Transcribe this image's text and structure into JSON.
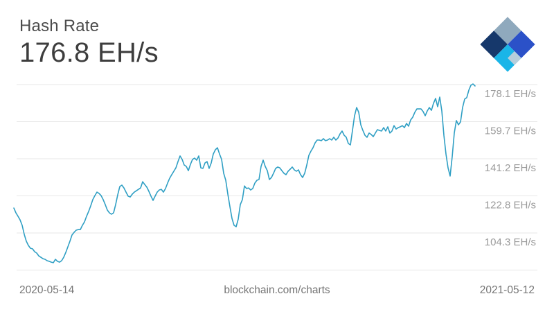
{
  "header": {
    "title": "Hash Rate",
    "value": "176.8 EH/s"
  },
  "footer": {
    "start_date": "2020-05-14",
    "watermark": "blockchain.com/charts",
    "end_date": "2021-05-12"
  },
  "logo": {
    "name": "blockchain-com-logo",
    "colors": {
      "top": "#8FA9BD",
      "right": "#2B51C8",
      "left": "#16386B",
      "bottom": "#19B5E8",
      "accent_small": "#B7CEDB"
    }
  },
  "chart_data": {
    "type": "line",
    "title": "Hash Rate",
    "unit": "EH/s",
    "x_range": [
      "2020-05-14",
      "2021-05-12"
    ],
    "y_axis_side": "right",
    "grid": true,
    "line_color": "#2f9fc4",
    "grid_color": "#e7e7e7",
    "y_ticks": [
      {
        "value": 178.1,
        "label": "178.1 EH/s"
      },
      {
        "value": 159.7,
        "label": "159.7 EH/s"
      },
      {
        "value": 141.2,
        "label": "141.2 EH/s"
      },
      {
        "value": 122.8,
        "label": "122.8 EH/s"
      },
      {
        "value": 104.3,
        "label": "104.3 EH/s"
      },
      {
        "value": 85.9,
        "label": ""
      }
    ],
    "values": [
      116.7,
      114.3,
      112.6,
      110.8,
      108.1,
      103.6,
      100.2,
      98.1,
      96.7,
      96.4,
      95.0,
      94.3,
      92.9,
      92.2,
      91.5,
      91.2,
      90.5,
      90.2,
      89.8,
      89.5,
      91.2,
      90.2,
      89.8,
      90.5,
      92.2,
      94.6,
      97.4,
      100.2,
      103.3,
      104.6,
      105.7,
      106.0,
      106.0,
      108.1,
      109.8,
      112.6,
      115.0,
      117.8,
      120.9,
      122.9,
      124.6,
      124.0,
      122.9,
      120.9,
      118.4,
      115.7,
      114.3,
      113.6,
      114.3,
      118.4,
      123.3,
      127.4,
      128.1,
      126.7,
      124.6,
      122.6,
      122.2,
      123.6,
      124.6,
      125.3,
      126.0,
      126.7,
      129.8,
      128.4,
      127.1,
      125.0,
      122.6,
      120.5,
      122.6,
      124.6,
      125.7,
      126.0,
      124.6,
      126.4,
      129.1,
      131.5,
      133.3,
      135.0,
      136.7,
      139.8,
      142.6,
      140.9,
      138.1,
      137.4,
      135.3,
      138.4,
      140.9,
      141.5,
      140.5,
      142.6,
      136.7,
      136.4,
      139.1,
      139.8,
      136.4,
      139.1,
      143.6,
      145.7,
      146.7,
      143.6,
      140.9,
      134.0,
      130.5,
      123.6,
      117.4,
      111.5,
      108.1,
      107.4,
      111.2,
      118.4,
      120.9,
      127.7,
      126.4,
      126.7,
      125.7,
      126.4,
      129.1,
      130.5,
      130.9,
      137.4,
      140.5,
      137.4,
      135.3,
      130.9,
      131.9,
      134.0,
      136.4,
      137.1,
      136.7,
      135.3,
      134.0,
      133.3,
      135.0,
      136.0,
      137.1,
      135.7,
      135.0,
      135.7,
      133.3,
      131.9,
      134.0,
      138.1,
      142.9,
      145.0,
      146.7,
      149.1,
      150.5,
      150.5,
      150.2,
      151.2,
      150.2,
      150.5,
      151.2,
      150.5,
      151.9,
      150.5,
      151.5,
      153.6,
      155.0,
      152.9,
      151.9,
      148.8,
      148.1,
      155.3,
      162.6,
      166.7,
      164.3,
      158.1,
      155.3,
      152.9,
      151.9,
      154.0,
      153.3,
      152.2,
      154.0,
      155.7,
      155.3,
      155.0,
      156.7,
      155.0,
      157.1,
      154.0,
      155.0,
      157.7,
      156.0,
      156.7,
      157.1,
      157.7,
      156.7,
      158.8,
      157.4,
      160.5,
      161.9,
      164.3,
      166.0,
      166.0,
      166.0,
      164.7,
      162.6,
      165.0,
      166.7,
      165.3,
      168.8,
      171.2,
      167.1,
      171.9,
      165.0,
      152.9,
      143.6,
      136.7,
      132.6,
      142.2,
      154.0,
      160.2,
      158.1,
      159.5,
      166.7,
      170.9,
      171.6,
      175.3,
      177.8,
      178.4,
      177.4
    ]
  }
}
